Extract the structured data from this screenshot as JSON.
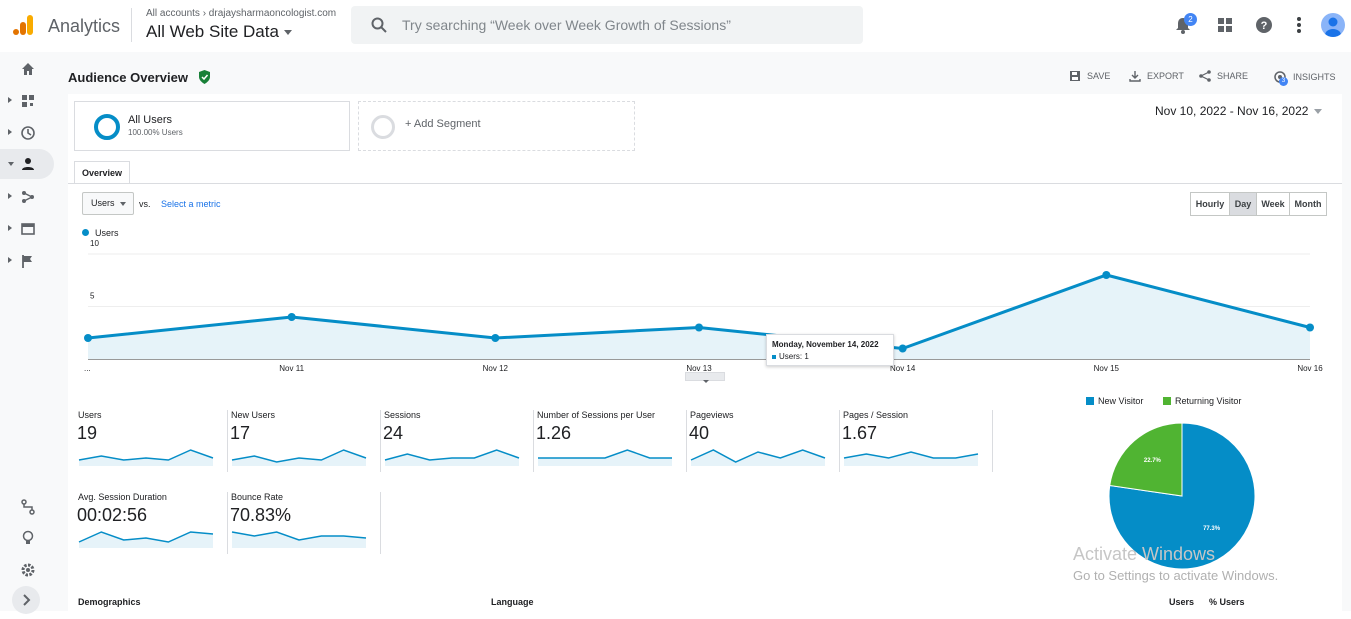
{
  "header": {
    "brand": "Analytics",
    "account_path": "All accounts › drajaysharmaoncologist.com",
    "view": "All Web Site Data",
    "search_placeholder": "Try searching “Week over Week Growth of Sessions”",
    "notification_count": "2"
  },
  "page": {
    "title": "Audience Overview",
    "actions": [
      "SAVE",
      "EXPORT",
      "SHARE",
      "INSIGHTS"
    ],
    "insights_count": "3",
    "date_range": "Nov 10, 2022 - Nov 16, 2022"
  },
  "segments": {
    "active_name": "All Users",
    "active_sub": "100.00% Users",
    "add_label": "+ Add Segment"
  },
  "tabs": [
    "Overview"
  ],
  "chart_controls": {
    "metric": "Users",
    "vs": "vs.",
    "select_metric": "Select a metric",
    "granularity": [
      "Hourly",
      "Day",
      "Week",
      "Month"
    ],
    "selected_granularity": "Day"
  },
  "chart_data": {
    "type": "area",
    "x": [
      "...",
      "Nov 11",
      "Nov 12",
      "Nov 13",
      "Nov 14",
      "Nov 15",
      "Nov 16"
    ],
    "series": [
      {
        "name": "Users",
        "values": [
          2,
          4,
          2,
          3,
          1,
          8,
          3
        ]
      }
    ],
    "yticks": [
      5,
      10
    ],
    "ylim": [
      0,
      10
    ],
    "color": "#058dc7",
    "tooltip": {
      "date": "Monday, November 14, 2022",
      "text": "Users: 1"
    }
  },
  "metrics": [
    {
      "label": "Users",
      "value": "19",
      "spark": [
        3,
        5,
        3,
        4,
        3,
        8,
        4
      ]
    },
    {
      "label": "New Users",
      "value": "17",
      "spark": [
        3,
        5,
        2,
        4,
        3,
        8,
        4
      ]
    },
    {
      "label": "Sessions",
      "value": "24",
      "spark": [
        3,
        6,
        3,
        4,
        4,
        8,
        4
      ]
    },
    {
      "label": "Number of Sessions per User",
      "value": "1.26",
      "spark": [
        4,
        4,
        4,
        4,
        8,
        4,
        4
      ]
    },
    {
      "label": "Pageviews",
      "value": "40",
      "spark": [
        3,
        8,
        2,
        7,
        4,
        8,
        4
      ]
    },
    {
      "label": "Pages / Session",
      "value": "1.67",
      "spark": [
        4,
        6,
        4,
        7,
        4,
        4,
        6
      ]
    },
    {
      "label": "Avg. Session Duration",
      "value": "00:02:56",
      "spark": [
        3,
        8,
        4,
        5,
        3,
        8,
        7
      ]
    },
    {
      "label": "Bounce Rate",
      "value": "70.83%",
      "spark": [
        8,
        6,
        8,
        4,
        6,
        6,
        5
      ]
    }
  ],
  "pie": {
    "legend": [
      {
        "name": "New Visitor",
        "color": "#058dc7"
      },
      {
        "name": "Returning Visitor",
        "color": "#50b432"
      }
    ],
    "slices": [
      {
        "name": "New Visitor",
        "value": 77.3,
        "label": "77.3%"
      },
      {
        "name": "Returning Visitor",
        "value": 22.7,
        "label": "22.7%"
      }
    ]
  },
  "watermark": {
    "line1": "Activate Windows",
    "line2": "Go to Settings to activate Windows."
  },
  "footer": {
    "demographics": "Demographics",
    "language": "Language",
    "users": "Users",
    "pct_users": "% Users"
  }
}
